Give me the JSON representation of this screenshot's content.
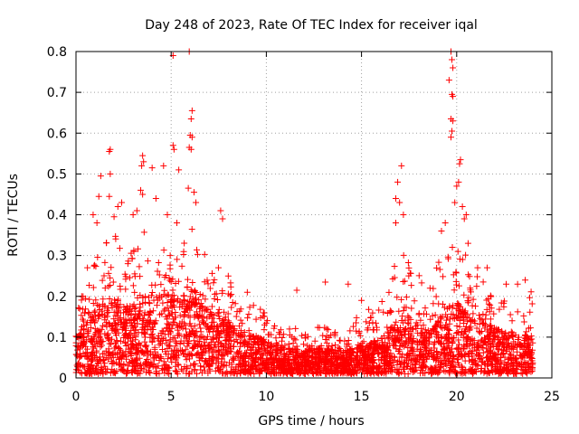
{
  "chart_data": {
    "type": "scatter",
    "title": "Day 248 of 2023, Rate Of TEC Index for receiver iqal",
    "xlabel": "GPS time / hours",
    "ylabel": "ROTI / TECUs",
    "xlim": [
      0,
      25
    ],
    "ylim": [
      0,
      0.8
    ],
    "xticks": [
      0,
      5,
      10,
      15,
      20,
      25
    ],
    "xtick_labels": [
      "0",
      "5",
      "10",
      "15",
      "20",
      "25"
    ],
    "yticks": [
      0,
      0.1,
      0.2,
      0.3,
      0.4,
      0.5,
      0.6,
      0.7,
      0.8
    ],
    "ytick_labels": [
      "0",
      "0.1",
      "0.2",
      "0.3",
      "0.4",
      "0.5",
      "0.6",
      "0.7",
      "0.8"
    ],
    "grid": true,
    "marker": "plus",
    "color": "#ff0000",
    "x_range_hours": [
      0,
      24
    ],
    "envelope": {
      "x": [
        0,
        0.5,
        1,
        1.5,
        2,
        2.5,
        3,
        3.5,
        4,
        4.5,
        5,
        5.5,
        6,
        6.5,
        7,
        7.5,
        8,
        8.5,
        9,
        9.5,
        10,
        10.5,
        11,
        11.5,
        12,
        12.5,
        13,
        13.5,
        14,
        14.5,
        15,
        15.5,
        16,
        16.5,
        17,
        17.5,
        18,
        18.5,
        19,
        19.5,
        20,
        20.5,
        21,
        21.5,
        22,
        22.5,
        23,
        23.5,
        24
      ],
      "typical_max": [
        0.16,
        0.22,
        0.3,
        0.32,
        0.35,
        0.28,
        0.3,
        0.4,
        0.3,
        0.32,
        0.33,
        0.3,
        0.38,
        0.33,
        0.26,
        0.27,
        0.24,
        0.18,
        0.17,
        0.17,
        0.15,
        0.13,
        0.11,
        0.12,
        0.1,
        0.11,
        0.13,
        0.12,
        0.1,
        0.13,
        0.16,
        0.16,
        0.17,
        0.24,
        0.3,
        0.28,
        0.25,
        0.2,
        0.27,
        0.34,
        0.32,
        0.3,
        0.24,
        0.23,
        0.2,
        0.18,
        0.17,
        0.21,
        0.2
      ],
      "median": [
        0.06,
        0.08,
        0.1,
        0.11,
        0.12,
        0.11,
        0.11,
        0.13,
        0.12,
        0.12,
        0.13,
        0.12,
        0.14,
        0.12,
        0.1,
        0.09,
        0.08,
        0.07,
        0.06,
        0.06,
        0.05,
        0.045,
        0.04,
        0.04,
        0.035,
        0.04,
        0.04,
        0.04,
        0.035,
        0.04,
        0.05,
        0.05,
        0.06,
        0.07,
        0.09,
        0.09,
        0.08,
        0.07,
        0.08,
        0.1,
        0.11,
        0.1,
        0.08,
        0.08,
        0.07,
        0.065,
        0.06,
        0.06,
        0.06
      ]
    },
    "outliers": [
      {
        "x": 5.1,
        "y": 0.79
      },
      {
        "x": 5.95,
        "y": 0.8
      },
      {
        "x": 19.7,
        "y": 0.8
      },
      {
        "x": 19.75,
        "y": 0.78
      },
      {
        "x": 19.8,
        "y": 0.76
      },
      {
        "x": 19.6,
        "y": 0.73
      },
      {
        "x": 19.75,
        "y": 0.695
      },
      {
        "x": 19.8,
        "y": 0.69
      },
      {
        "x": 6.1,
        "y": 0.655
      },
      {
        "x": 6.05,
        "y": 0.635
      },
      {
        "x": 19.7,
        "y": 0.635
      },
      {
        "x": 19.8,
        "y": 0.63
      },
      {
        "x": 19.75,
        "y": 0.605
      },
      {
        "x": 19.7,
        "y": 0.59
      },
      {
        "x": 6.0,
        "y": 0.595
      },
      {
        "x": 6.1,
        "y": 0.59
      },
      {
        "x": 5.1,
        "y": 0.57
      },
      {
        "x": 5.15,
        "y": 0.56
      },
      {
        "x": 5.95,
        "y": 0.565
      },
      {
        "x": 6.05,
        "y": 0.56
      },
      {
        "x": 1.8,
        "y": 0.56
      },
      {
        "x": 1.75,
        "y": 0.555
      },
      {
        "x": 3.5,
        "y": 0.545
      },
      {
        "x": 3.55,
        "y": 0.53
      },
      {
        "x": 3.45,
        "y": 0.52
      },
      {
        "x": 4.6,
        "y": 0.52
      },
      {
        "x": 4.0,
        "y": 0.515
      },
      {
        "x": 5.4,
        "y": 0.51
      },
      {
        "x": 1.3,
        "y": 0.495
      },
      {
        "x": 1.8,
        "y": 0.5
      },
      {
        "x": 17.1,
        "y": 0.52
      },
      {
        "x": 16.9,
        "y": 0.48
      },
      {
        "x": 20.2,
        "y": 0.535
      },
      {
        "x": 20.15,
        "y": 0.525
      },
      {
        "x": 20.0,
        "y": 0.47
      },
      {
        "x": 20.1,
        "y": 0.48
      },
      {
        "x": 5.9,
        "y": 0.465
      },
      {
        "x": 6.2,
        "y": 0.455
      },
      {
        "x": 3.4,
        "y": 0.46
      },
      {
        "x": 3.5,
        "y": 0.45
      },
      {
        "x": 1.75,
        "y": 0.445
      },
      {
        "x": 1.2,
        "y": 0.445
      },
      {
        "x": 4.2,
        "y": 0.44
      },
      {
        "x": 6.3,
        "y": 0.43
      },
      {
        "x": 20.3,
        "y": 0.42
      },
      {
        "x": 19.9,
        "y": 0.43
      },
      {
        "x": 16.8,
        "y": 0.44
      },
      {
        "x": 17.0,
        "y": 0.43
      },
      {
        "x": 7.6,
        "y": 0.41
      },
      {
        "x": 7.7,
        "y": 0.39
      },
      {
        "x": 0.9,
        "y": 0.4
      },
      {
        "x": 1.1,
        "y": 0.38
      },
      {
        "x": 2.2,
        "y": 0.42
      },
      {
        "x": 2.4,
        "y": 0.43
      },
      {
        "x": 3.0,
        "y": 0.4
      },
      {
        "x": 3.2,
        "y": 0.41
      },
      {
        "x": 4.8,
        "y": 0.4
      },
      {
        "x": 5.3,
        "y": 0.38
      },
      {
        "x": 17.2,
        "y": 0.4
      },
      {
        "x": 16.8,
        "y": 0.38
      },
      {
        "x": 20.5,
        "y": 0.4
      },
      {
        "x": 20.4,
        "y": 0.39
      },
      {
        "x": 19.4,
        "y": 0.38
      },
      {
        "x": 19.2,
        "y": 0.36
      },
      {
        "x": 20.6,
        "y": 0.33
      },
      {
        "x": 21.1,
        "y": 0.27
      },
      {
        "x": 21.6,
        "y": 0.27
      },
      {
        "x": 22.6,
        "y": 0.23
      },
      {
        "x": 23.2,
        "y": 0.23
      },
      {
        "x": 23.6,
        "y": 0.24
      },
      {
        "x": 11.6,
        "y": 0.215
      },
      {
        "x": 13.1,
        "y": 0.235
      },
      {
        "x": 14.3,
        "y": 0.23
      },
      {
        "x": 15.0,
        "y": 0.19
      },
      {
        "x": 9.0,
        "y": 0.21
      },
      {
        "x": 8.0,
        "y": 0.25
      },
      {
        "x": 2.0,
        "y": 0.395
      },
      {
        "x": 0.3,
        "y": 0.2
      },
      {
        "x": 0.6,
        "y": 0.27
      },
      {
        "x": 18.6,
        "y": 0.22
      }
    ]
  }
}
